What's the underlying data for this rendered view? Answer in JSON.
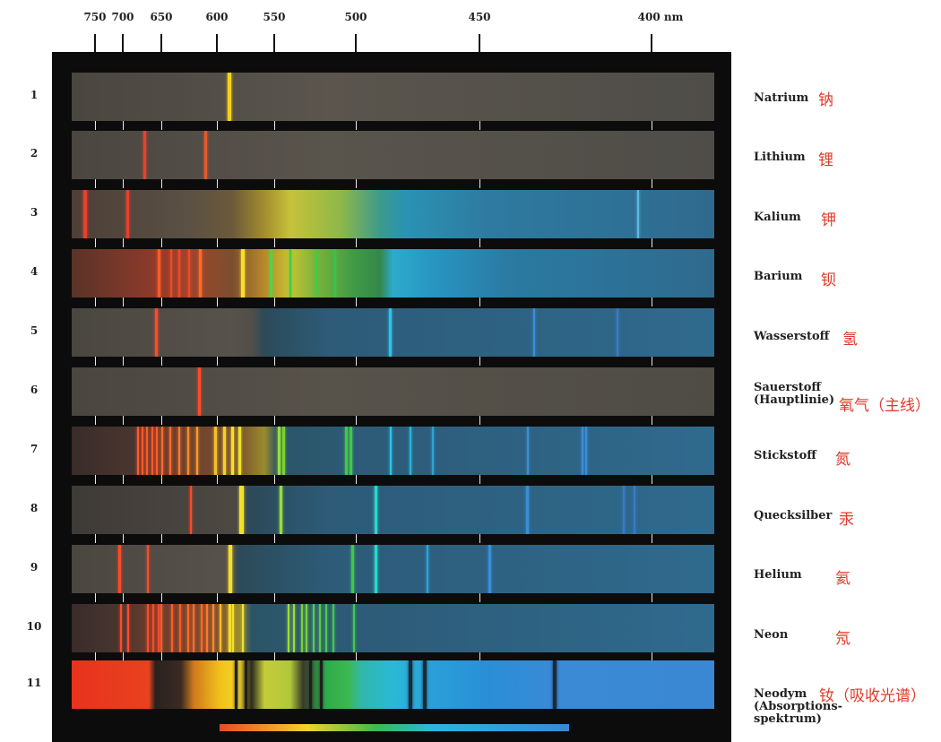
{
  "axis": {
    "ticks": [
      {
        "nm": 750,
        "label": "750"
      },
      {
        "nm": 700,
        "label": "700"
      },
      {
        "nm": 650,
        "label": "650"
      },
      {
        "nm": 600,
        "label": "600"
      },
      {
        "nm": 550,
        "label": "550"
      },
      {
        "nm": 500,
        "label": "500"
      },
      {
        "nm": 450,
        "label": "450"
      },
      {
        "nm": 400,
        "label": "400 nm"
      }
    ]
  },
  "colors": {
    "board": "#0c0c0c",
    "label_cn": "#e03a2a",
    "text": "#222222"
  },
  "spectra": [
    {
      "num": "1",
      "label": [
        "Natrium"
      ],
      "cn": "钠",
      "bg": "linear-gradient(90deg,#4a4640,#5a554d 40%,#4f4d48)",
      "lines": [
        {
          "nm": 589,
          "color": "#f4d21c",
          "w": 4
        }
      ]
    },
    {
      "num": "2",
      "label": [
        "Lithium"
      ],
      "cn": "锂",
      "bg": "linear-gradient(90deg,#4b4640,#59544c 40%,#4f4d48)",
      "lines": [
        {
          "nm": 671,
          "color": "#e8432b",
          "w": 3
        },
        {
          "nm": 610,
          "color": "#e35a2d",
          "w": 3
        }
      ]
    },
    {
      "num": "3",
      "label": [
        "Kalium"
      ],
      "cn": "钾",
      "bg": "linear-gradient(90deg,#4d3f37 0%,#5a5044 18%,#6b5a3a 25%,#a48d2e 30%,#c6c23a 34%,#8cb84a 42%,#3c9a8c 48%,#2a92b4 52%,#2e7aa0 65%,#2f6a8e 100%)",
      "lines": [
        {
          "nm": 768,
          "color": "#e8402c",
          "w": 4
        },
        {
          "nm": 694,
          "color": "#e8402c",
          "w": 3
        },
        {
          "nm": 404,
          "color": "#5fb8e0",
          "w": 2
        }
      ]
    },
    {
      "num": "4",
      "label": [
        "Barium"
      ],
      "cn": "钡",
      "bg": "linear-gradient(90deg,#5a3328 0%,#8a3a2a 12%,#a0442c 18%,#7c4e2e 25%,#b8882c 30%,#c7c233 34%,#7ab43c 38%,#3f9a46 44%,#33884a 48%,#2eaacc 50%,#2896c2 56%,#2a7aa2 68%,#2f6a8e 100%)",
      "lines": [
        {
          "nm": 653,
          "color": "#ff5a2a",
          "w": 3
        },
        {
          "nm": 641,
          "color": "#f14a28",
          "w": 2
        },
        {
          "nm": 634,
          "color": "#f14a28",
          "w": 2
        },
        {
          "nm": 625,
          "color": "#f14a28",
          "w": 2
        },
        {
          "nm": 615,
          "color": "#ff6a2a",
          "w": 3
        },
        {
          "nm": 577,
          "color": "#f4e02a",
          "w": 4
        },
        {
          "nm": 553,
          "color": "#58d04a",
          "w": 3
        },
        {
          "nm": 540,
          "color": "#46c84a",
          "w": 2
        },
        {
          "nm": 524,
          "color": "#46c84a",
          "w": 2
        },
        {
          "nm": 513,
          "color": "#3cc050",
          "w": 3
        }
      ]
    },
    {
      "num": "5",
      "label": [
        "Wasserstoff"
      ],
      "cn": "氢",
      "bg": "linear-gradient(90deg,#4a4640,#57524b 25%,#524e48 28%,#2c4a58 30%,#2d5b78 40%,#2f6a8e 100%)",
      "lines": [
        {
          "nm": 656,
          "color": "#ff4a2a",
          "w": 3
        },
        {
          "nm": 486,
          "color": "#2ac4e8",
          "w": 3
        },
        {
          "nm": 434,
          "color": "#3a8ed6",
          "w": 2
        },
        {
          "nm": 410,
          "color": "#3b7ac8",
          "w": 2
        }
      ]
    },
    {
      "num": "6",
      "label": [
        "Sauerstoff",
        "(Hauptlinie)"
      ],
      "cn": "氧气（主线）",
      "bg": "linear-gradient(90deg,#4a4640,#57524a 40%,#4f4c46)",
      "lines": [
        {
          "nm": 616,
          "color": "#ff4a2a",
          "w": 3
        }
      ]
    },
    {
      "num": "7",
      "label": [
        "Stickstoff"
      ],
      "cn": "氮",
      "bg": "linear-gradient(90deg,#3a2c2a 0%,#4a3630 10%,#6a3c2c 14%,#7a5030 26%,#9a8c2c 30%,#2b5466 32%,#2d5b78 45%,#2f6a8e 100%)",
      "lines": [
        {
          "nm": 680,
          "color": "#ff5a2a",
          "w": 2
        },
        {
          "nm": 675,
          "color": "#ff5a2a",
          "w": 2
        },
        {
          "nm": 669,
          "color": "#ff5a2a",
          "w": 2
        },
        {
          "nm": 662,
          "color": "#ff5a2a",
          "w": 2
        },
        {
          "nm": 656,
          "color": "#ff5a2a",
          "w": 2
        },
        {
          "nm": 649,
          "color": "#ff6a2a",
          "w": 2
        },
        {
          "nm": 642,
          "color": "#ff6a2a",
          "w": 2
        },
        {
          "nm": 634,
          "color": "#ff7a2a",
          "w": 2
        },
        {
          "nm": 626,
          "color": "#ff8a2a",
          "w": 2
        },
        {
          "nm": 618,
          "color": "#ff9a2a",
          "w": 2
        },
        {
          "nm": 601,
          "color": "#f4c02a",
          "w": 3
        },
        {
          "nm": 593,
          "color": "#f4d02a",
          "w": 3
        },
        {
          "nm": 586,
          "color": "#f4e02a",
          "w": 3
        },
        {
          "nm": 580,
          "color": "#eae42a",
          "w": 3
        },
        {
          "nm": 547,
          "color": "#9adc3a",
          "w": 3
        },
        {
          "nm": 544,
          "color": "#7ad03a",
          "w": 3
        },
        {
          "nm": 506,
          "color": "#42c84a",
          "w": 3
        },
        {
          "nm": 503,
          "color": "#42c84a",
          "w": 3
        },
        {
          "nm": 486,
          "color": "#2ac4e8",
          "w": 2
        },
        {
          "nm": 478,
          "color": "#2ab4e0",
          "w": 2
        },
        {
          "nm": 469,
          "color": "#2aa4d8",
          "w": 2
        },
        {
          "nm": 436,
          "color": "#3a8ed6",
          "w": 2
        },
        {
          "nm": 420,
          "color": "#3a8ed6",
          "w": 2
        },
        {
          "nm": 419,
          "color": "#3a8ed6",
          "w": 2
        }
      ]
    },
    {
      "num": "8",
      "label": [
        "Quecksilber"
      ],
      "cn": "汞",
      "bg": "linear-gradient(90deg,#3e3a36,#4d4842 25%,#2c4a58 28%,#2d5b78 40%,#2f6a8e 100%)",
      "lines": [
        {
          "nm": 623,
          "color": "#ff4a2a",
          "w": 2
        },
        {
          "nm": 579,
          "color": "#f4e02a",
          "w": 3
        },
        {
          "nm": 577,
          "color": "#f4e02a",
          "w": 2
        },
        {
          "nm": 546,
          "color": "#9adc3a",
          "w": 3
        },
        {
          "nm": 492,
          "color": "#2ad8c8",
          "w": 3
        },
        {
          "nm": 436,
          "color": "#3a8ed6",
          "w": 3
        },
        {
          "nm": 408,
          "color": "#3b7ac8",
          "w": 2
        },
        {
          "nm": 405,
          "color": "#3b7ac8",
          "w": 2
        }
      ]
    },
    {
      "num": "9",
      "label": [
        "Helium"
      ],
      "cn": "氦",
      "bg": "linear-gradient(90deg,#4a4640,#57524b 25%,#2c4a58 26%,#2d5b78 40%,#2f6a8e 100%)",
      "lines": [
        {
          "nm": 706,
          "color": "#ff4a2a",
          "w": 3
        },
        {
          "nm": 668,
          "color": "#ff4a2a",
          "w": 2
        },
        {
          "nm": 588,
          "color": "#f4e02a",
          "w": 4
        },
        {
          "nm": 502,
          "color": "#42c84a",
          "w": 3
        },
        {
          "nm": 492,
          "color": "#2ad8c8",
          "w": 3
        },
        {
          "nm": 471,
          "color": "#2aa4d8",
          "w": 2
        },
        {
          "nm": 447,
          "color": "#3a8ed6",
          "w": 3
        }
      ]
    },
    {
      "num": "10",
      "label": [
        "Neon"
      ],
      "cn": "氖",
      "bg": "linear-gradient(90deg,#3a2c2a 0%,#4a3630 8%,#6a3c2c 12%,#7a5030 23%,#9a8c2c 26%,#2b5466 28%,#2d5b78 45%,#2f6a8e 100%)",
      "lines": [
        {
          "nm": 703,
          "color": "#ff4a2a",
          "w": 2
        },
        {
          "nm": 693,
          "color": "#ff4a2a",
          "w": 2
        },
        {
          "nm": 668,
          "color": "#ff4a2a",
          "w": 2
        },
        {
          "nm": 660,
          "color": "#ff4a2a",
          "w": 2
        },
        {
          "nm": 653,
          "color": "#ff4a2a",
          "w": 2
        },
        {
          "nm": 650,
          "color": "#ff5a2a",
          "w": 2
        },
        {
          "nm": 640,
          "color": "#ff5a2a",
          "w": 2
        },
        {
          "nm": 633,
          "color": "#ff5a2a",
          "w": 2
        },
        {
          "nm": 626,
          "color": "#ff6a2a",
          "w": 2
        },
        {
          "nm": 621,
          "color": "#ff6a2a",
          "w": 2
        },
        {
          "nm": 614,
          "color": "#ff6a2a",
          "w": 2
        },
        {
          "nm": 609,
          "color": "#ff7a2a",
          "w": 2
        },
        {
          "nm": 603,
          "color": "#ff8a2a",
          "w": 2
        },
        {
          "nm": 597,
          "color": "#f4c02a",
          "w": 2
        },
        {
          "nm": 589,
          "color": "#f4e02a",
          "w": 3
        },
        {
          "nm": 586,
          "color": "#f4e02a",
          "w": 2
        },
        {
          "nm": 577,
          "color": "#f4e02a",
          "w": 2
        },
        {
          "nm": 541,
          "color": "#9adc3a",
          "w": 2
        },
        {
          "nm": 538,
          "color": "#9adc3a",
          "w": 2
        },
        {
          "nm": 533,
          "color": "#7ad03a",
          "w": 2
        },
        {
          "nm": 530,
          "color": "#7ad03a",
          "w": 2
        },
        {
          "nm": 526,
          "color": "#5ac84a",
          "w": 2
        },
        {
          "nm": 522,
          "color": "#5ac84a",
          "w": 2
        },
        {
          "nm": 518,
          "color": "#4ac84a",
          "w": 2
        },
        {
          "nm": 514,
          "color": "#42c84a",
          "w": 2
        },
        {
          "nm": 501,
          "color": "#42c84a",
          "w": 2
        }
      ]
    },
    {
      "num": "11",
      "label": [
        "Neodym",
        "(Absorptions-",
        "spektrum)"
      ],
      "cn": "钕（吸收光谱）",
      "bg": "linear-gradient(90deg,#e8321e 0%,#e8421e 12%,#2a2220 13%,#3a2a22 17%,#d07a1c 19%,#f2c01c 23%,#f4d62a 26%,#2a2a22 28%,#c4cc3a 30%,#b0c83a 34%,#3a3a2a 36%,#2ea84a 39%,#3cb850 43%,#30b8a8 45%,#2bb8d8 50%,#2aa0d8 56%,#2a8ed6 65%,#3a8ad6 75%,#3a88d4 100%)",
      "lines": [
        {
          "nm": 583,
          "color": "#202020",
          "w": 3
        },
        {
          "nm": 575,
          "color": "#202020",
          "w": 3
        },
        {
          "nm": 528,
          "color": "#1e1e1e",
          "w": 3
        },
        {
          "nm": 521,
          "color": "#1e1e1e",
          "w": 3
        },
        {
          "nm": 478,
          "color": "#1a2a3a",
          "w": 4
        },
        {
          "nm": 472,
          "color": "#1a2a3a",
          "w": 4
        },
        {
          "nm": 428,
          "color": "#1a2a3a",
          "w": 4
        }
      ]
    }
  ]
}
